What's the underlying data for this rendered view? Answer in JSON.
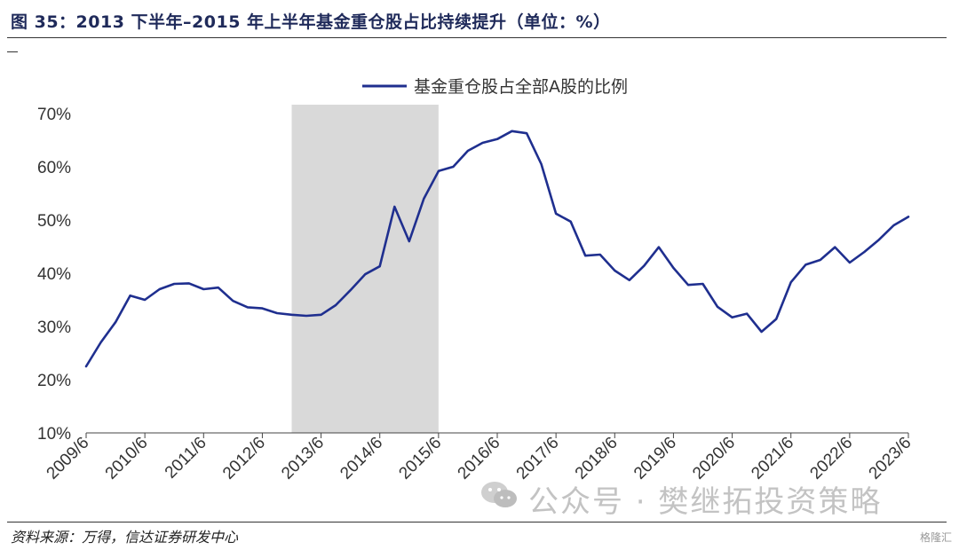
{
  "figure": {
    "title": "图 35：2013 下半年–2015 年上半年基金重仓股占比持续提升（单位：%）",
    "source": "资料来源：万得，信达证券研发中心",
    "watermark": "公众号 · 樊继拓投资策略",
    "corner_logo": "格隆汇"
  },
  "colors": {
    "line": "#1f2f8f",
    "shade": "#d9d9d9",
    "title": "#1f2a5a"
  },
  "chart_data": {
    "type": "line",
    "title": "",
    "xlabel": "",
    "ylabel": "",
    "ylim": [
      10,
      70
    ],
    "yticks": [
      "10%",
      "20%",
      "30%",
      "40%",
      "50%",
      "60%",
      "70%"
    ],
    "categories": [
      "2009/6",
      "2010/6",
      "2011/6",
      "2012/6",
      "2013/6",
      "2014/6",
      "2015/6",
      "2016/6",
      "2017/6",
      "2018/6",
      "2019/6",
      "2020/6",
      "2021/6",
      "2022/6",
      "2023/6"
    ],
    "legend": {
      "position": "top-center",
      "label": "基金重仓股占全部A股的比例"
    },
    "highlight_range": [
      "2012/12",
      "2015/6"
    ],
    "grid": false,
    "series": [
      {
        "name": "基金重仓股占全部A股的比例",
        "x": [
          "2009/6",
          "2009/9",
          "2009/12",
          "2010/3",
          "2010/6",
          "2010/9",
          "2010/12",
          "2011/3",
          "2011/6",
          "2011/9",
          "2011/12",
          "2012/3",
          "2012/6",
          "2012/9",
          "2012/12",
          "2013/3",
          "2013/6",
          "2013/9",
          "2013/12",
          "2014/3",
          "2014/6",
          "2014/9",
          "2014/12",
          "2015/3",
          "2015/6",
          "2015/9",
          "2015/12",
          "2016/3",
          "2016/6",
          "2016/9",
          "2016/12",
          "2017/3",
          "2017/6",
          "2017/9",
          "2017/12",
          "2018/3",
          "2018/6",
          "2018/9",
          "2018/12",
          "2019/3",
          "2019/6",
          "2019/9",
          "2019/12",
          "2020/3",
          "2020/6",
          "2020/9",
          "2020/12",
          "2021/3",
          "2021/6",
          "2021/9",
          "2021/12",
          "2022/3",
          "2022/6",
          "2022/9",
          "2022/12",
          "2023/3",
          "2023/6"
        ],
        "values": [
          22.5,
          27.0,
          30.8,
          35.8,
          35.0,
          37.0,
          38.0,
          38.1,
          37.0,
          37.3,
          34.8,
          33.6,
          33.4,
          32.5,
          32.2,
          32.0,
          32.2,
          34.0,
          36.8,
          39.8,
          41.3,
          52.5,
          46.0,
          54.0,
          59.2,
          60.0,
          63.0,
          64.5,
          65.2,
          66.7,
          66.3,
          60.5,
          51.2,
          49.7,
          43.3,
          43.5,
          40.5,
          38.7,
          41.4,
          44.9,
          41.0,
          37.8,
          38.0,
          33.7,
          31.7,
          32.4,
          29.0,
          31.4,
          38.3,
          41.6,
          42.5,
          44.9,
          42.0,
          44.0,
          46.3,
          49.0,
          50.6
        ]
      }
    ]
  }
}
